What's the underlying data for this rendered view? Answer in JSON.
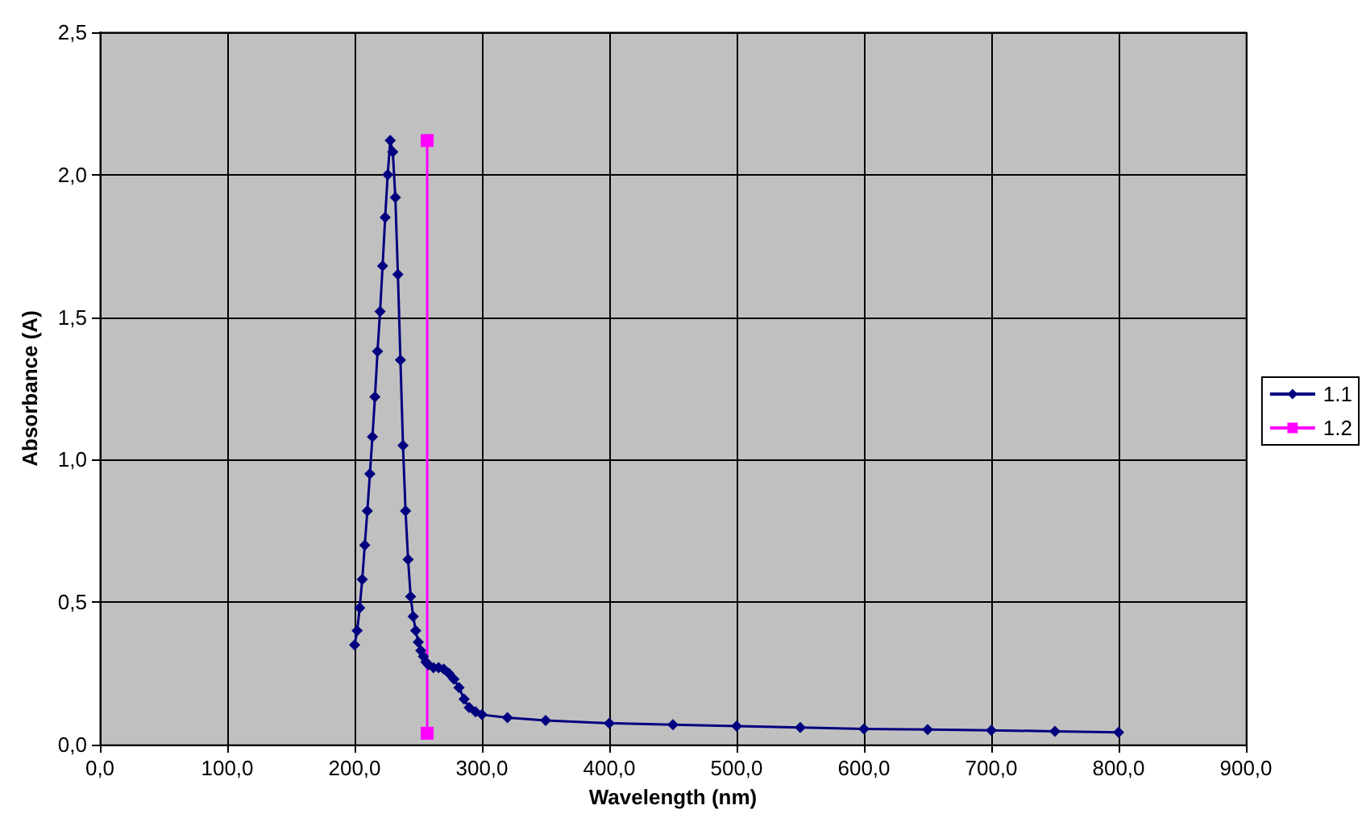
{
  "chart_data": {
    "type": "line",
    "xlabel": "Wavelength (nm)",
    "ylabel": "Absorbance (A)",
    "xlim": [
      0,
      900
    ],
    "xticks": [
      {
        "value": 0,
        "label": "0,0"
      },
      {
        "value": 100,
        "label": "100,0"
      },
      {
        "value": 200,
        "label": "200,0"
      },
      {
        "value": 300,
        "label": "300,0"
      },
      {
        "value": 400,
        "label": "400,0"
      },
      {
        "value": 500,
        "label": "500,0"
      },
      {
        "value": 600,
        "label": "600,0"
      },
      {
        "value": 700,
        "label": "700,0"
      },
      {
        "value": 800,
        "label": "800,0"
      },
      {
        "value": 900,
        "label": "900,0"
      }
    ],
    "ylim": [
      0,
      2.5
    ],
    "yticks": [
      {
        "value": 0,
        "label": "0,0"
      },
      {
        "value": 0.5,
        "label": "0,5"
      },
      {
        "value": 1,
        "label": "1,0"
      },
      {
        "value": 1.5,
        "label": "1,5"
      },
      {
        "value": 2,
        "label": "2,0"
      },
      {
        "value": 2.5,
        "label": "2,5"
      }
    ],
    "grid": true,
    "legend": "right",
    "series": [
      {
        "name": "1.1",
        "color": "#000080",
        "marker": "diamond",
        "x": [
          200,
          202,
          204,
          206,
          208,
          210,
          212,
          214,
          216,
          218,
          220,
          222,
          224,
          226,
          228,
          230,
          232,
          234,
          236,
          238,
          240,
          242,
          244,
          246,
          248,
          250,
          252,
          254,
          256,
          258,
          262,
          266,
          270,
          274,
          278,
          282,
          286,
          290,
          295,
          300,
          320,
          350,
          400,
          450,
          500,
          550,
          600,
          650,
          700,
          750,
          800
        ],
        "values": [
          0.35,
          0.4,
          0.48,
          0.58,
          0.7,
          0.82,
          0.95,
          1.08,
          1.22,
          1.38,
          1.52,
          1.68,
          1.85,
          2.0,
          2.12,
          2.08,
          1.92,
          1.65,
          1.35,
          1.05,
          0.82,
          0.65,
          0.52,
          0.45,
          0.4,
          0.36,
          0.33,
          0.31,
          0.29,
          0.28,
          0.27,
          0.27,
          0.265,
          0.25,
          0.23,
          0.2,
          0.16,
          0.13,
          0.115,
          0.105,
          0.095,
          0.085,
          0.075,
          0.07,
          0.065,
          0.06,
          0.055,
          0.053,
          0.05,
          0.047,
          0.043
        ]
      },
      {
        "name": "1.2",
        "color": "#ff00ff",
        "marker": "square",
        "x": [
          257,
          257
        ],
        "values": [
          2.12,
          0.04
        ]
      }
    ]
  }
}
